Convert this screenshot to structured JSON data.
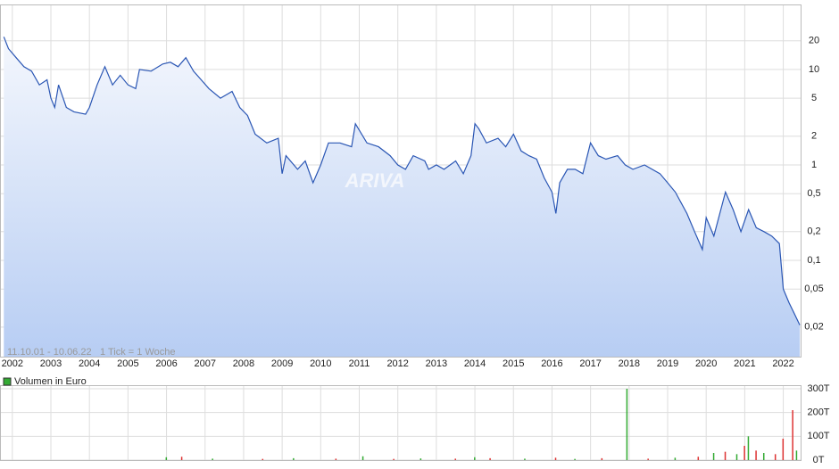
{
  "chart_data": [
    {
      "type": "line",
      "annotations": [
        "11.10.01 - 10.06.22",
        "1 Tick = 1 Woche",
        "ARIVA"
      ],
      "x": [
        2001.78,
        2001.9,
        2002.1,
        2002.3,
        2002.5,
        2002.7,
        2002.9,
        2003.0,
        2003.1,
        2003.2,
        2003.4,
        2003.6,
        2003.9,
        2004.0,
        2004.2,
        2004.4,
        2004.6,
        2004.8,
        2005.0,
        2005.2,
        2005.3,
        2005.6,
        2005.9,
        2006.1,
        2006.3,
        2006.5,
        2006.7,
        2006.9,
        2007.1,
        2007.4,
        2007.7,
        2007.9,
        2008.1,
        2008.3,
        2008.6,
        2008.9,
        2009.0,
        2009.1,
        2009.4,
        2009.6,
        2009.8,
        2010.0,
        2010.2,
        2010.5,
        2010.8,
        2010.9,
        2011.2,
        2011.5,
        2011.8,
        2012.0,
        2012.2,
        2012.4,
        2012.7,
        2012.8,
        2013.0,
        2013.2,
        2013.5,
        2013.7,
        2013.9,
        2014.0,
        2014.1,
        2014.3,
        2014.6,
        2014.8,
        2015.0,
        2015.2,
        2015.4,
        2015.6,
        2015.8,
        2016.0,
        2016.1,
        2016.2,
        2016.4,
        2016.6,
        2016.8,
        2017.0,
        2017.2,
        2017.4,
        2017.7,
        2017.9,
        2018.1,
        2018.4,
        2018.8,
        2019.0,
        2019.2,
        2019.5,
        2019.7,
        2019.9,
        2020.0,
        2020.2,
        2020.5,
        2020.7,
        2020.9,
        2021.1,
        2021.3,
        2021.5,
        2021.7,
        2021.9,
        2022.0,
        2022.15,
        2022.3,
        2022.43
      ],
      "values": [
        22,
        16.5,
        13.3,
        10.7,
        9.6,
        6.9,
        7.8,
        5,
        4,
        6.9,
        4,
        3.6,
        3.4,
        4,
        6.9,
        10.7,
        6.9,
        8.7,
        6.9,
        6.3,
        10,
        9.6,
        11.4,
        11.9,
        10.7,
        13.3,
        9.6,
        7.8,
        6.3,
        5,
        5.9,
        4,
        3.3,
        2.1,
        1.7,
        1.9,
        0.81,
        1.25,
        0.9,
        1.1,
        0.65,
        1,
        1.7,
        1.7,
        1.55,
        2.7,
        1.7,
        1.55,
        1.25,
        1,
        0.9,
        1.25,
        1.1,
        0.9,
        1,
        0.9,
        1.1,
        0.81,
        1.25,
        2.7,
        2.4,
        1.7,
        1.9,
        1.55,
        2.1,
        1.4,
        1.25,
        1.15,
        0.73,
        0.52,
        0.31,
        0.65,
        0.9,
        0.9,
        0.81,
        1.7,
        1.25,
        1.15,
        1.25,
        1,
        0.9,
        1,
        0.81,
        0.65,
        0.52,
        0.31,
        0.2,
        0.13,
        0.28,
        0.18,
        0.52,
        0.34,
        0.2,
        0.34,
        0.22,
        0.2,
        0.18,
        0.15,
        0.05,
        0.036,
        0.027,
        0.021
      ],
      "color": "#2a56b4",
      "xlim": [
        2001.68,
        2022.45
      ],
      "xticks": [
        2002,
        2003,
        2004,
        2005,
        2006,
        2007,
        2008,
        2009,
        2010,
        2011,
        2012,
        2013,
        2014,
        2015,
        2016,
        2017,
        2018,
        2019,
        2020,
        2021,
        2022
      ],
      "ylim": [
        0.0098,
        48
      ],
      "yticks": [
        20,
        10,
        5,
        2,
        1,
        {
          "value": 0.5,
          "label": "0,5"
        },
        {
          "value": 0.2,
          "label": "0,2"
        },
        {
          "value": 0.1,
          "label": "0,1"
        },
        {
          "value": 0.05,
          "label": "0,05"
        },
        {
          "value": 0.02,
          "label": "0,02"
        }
      ],
      "log_scale": true,
      "grid": true
    },
    {
      "type": "bar",
      "legend": "Volumen in Euro",
      "color": "#33aa33",
      "x": [
        2006.0,
        2006.4,
        2007.2,
        2008.5,
        2009.3,
        2010.4,
        2011.1,
        2011.9,
        2012.6,
        2013.5,
        2014.0,
        2014.4,
        2015.3,
        2016.1,
        2016.6,
        2017.3,
        2017.95,
        2018.5,
        2019.2,
        2019.8,
        2020.2,
        2020.5,
        2020.8,
        2021.0,
        2021.1,
        2021.3,
        2021.5,
        2021.8,
        2022.0,
        2022.25,
        2022.35
      ],
      "values": [
        12,
        14,
        6,
        5,
        8,
        6,
        16,
        5,
        7,
        6,
        12,
        8,
        6,
        10,
        5,
        8,
        300,
        6,
        10,
        14,
        30,
        35,
        25,
        60,
        100,
        40,
        30,
        25,
        90,
        210,
        40
      ],
      "colors": [
        "#33aa33",
        "#dd3333",
        "#33aa33",
        "#dd3333",
        "#33aa33",
        "#dd3333",
        "#33aa33",
        "#dd3333",
        "#33aa33",
        "#dd3333",
        "#33aa33",
        "#dd3333",
        "#33aa33",
        "#dd3333",
        "#33aa33",
        "#dd3333",
        "#33aa33",
        "#dd3333",
        "#33aa33",
        "#dd3333",
        "#33aa33",
        "#dd3333",
        "#33aa33",
        "#dd3333",
        "#33aa33",
        "#dd3333",
        "#33aa33",
        "#dd3333",
        "#dd3333",
        "#dd3333",
        "#33aa33"
      ],
      "ylim": [
        0,
        315
      ],
      "yticks": [
        {
          "value": 0,
          "label": "0T"
        },
        {
          "value": 100,
          "label": "100T"
        },
        {
          "value": 200,
          "label": "200T"
        },
        {
          "value": 300,
          "label": "300T"
        }
      ]
    }
  ]
}
